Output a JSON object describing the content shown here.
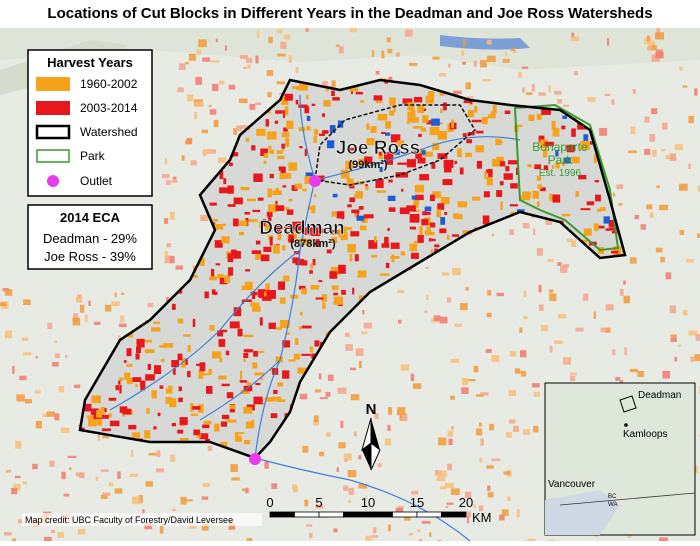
{
  "title": "Locations of Cut Blocks in Different Years in the Deadman and Joe Ross Watersheds",
  "legend": {
    "title": "Harvest Years",
    "items": [
      "1960-2002",
      "2003-2014",
      "Watershed",
      "Park",
      "Outlet"
    ]
  },
  "eca": {
    "title": "2014 ECA",
    "rows": [
      "Deadman - 29%",
      "Joe Ross - 39%"
    ]
  },
  "map_labels": {
    "joe_ross": "Joe Ross",
    "joe_ross_area": "(99km²)",
    "deadman": "Deadman",
    "deadman_area": "(878km²)",
    "park_name": [
      "Bonaparte",
      "Park"
    ],
    "park_est": "Est. 1996"
  },
  "north": "N",
  "scale_bar": {
    "ticks": [
      "0",
      "5",
      "10",
      "15",
      "20"
    ],
    "unit": "KM"
  },
  "credit": "Map credit: UBC Faculty of Forestry/David Leversee",
  "inset": {
    "deadman": "Deadman",
    "kamloops": "Kamloops",
    "vancouver": "Vancouver",
    "bc": "BC",
    "wa": "WA"
  }
}
